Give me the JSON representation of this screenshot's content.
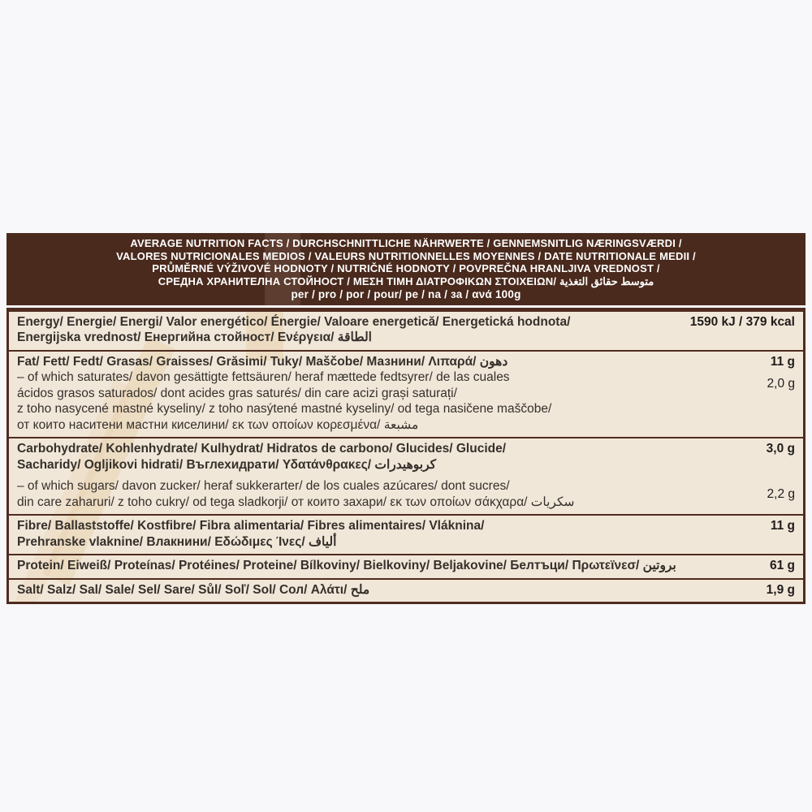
{
  "colors": {
    "page-bg": "#f8f8fa",
    "header-bg": "#4a2a1d",
    "header-text": "#ffffff",
    "row-bg": "#f1e7d9",
    "border": "#4f2c1f",
    "text": "#35302b",
    "value": "#1f1c1a",
    "stripe": "#e8d1ab"
  },
  "header": {
    "lines": [
      "AVERAGE NUTRITION FACTS / DURCHSCHNITTLICHE  NÄHRWERTE / GENNEMSNITLIG NÆRINGSVÆRDI /",
      "VALORES NUTRICIONALES MEDIOS / VALEURS NUTRITIONNELLES MOYENNES / DATE NUTRITIONALE MEDII /",
      "PRŮMĚRNÉ VÝŽIVOVÉ HODNOTY / NUTRIČNÉ HODNOTY / POVPREČNA HRANLJIVA VREDNOST /",
      "СРЕДНА ХРАНИТЕЛНА СТОЙНОСТ / ΜΕΣΗ ΤΙΜΗ ΔΙΑΤΡΟΦΙΚΩΝ ΣΤΟΙΧΕΙΩΝ/ متوسط حقائق التغذية"
    ],
    "per_line": "per / pro / por / pour/ pe / na / за / ανά 100g"
  },
  "rows": [
    {
      "name": "energy",
      "lines": [
        {
          "text": "Energy/ Energie/ Energi/ Valor energético/ Énergie/ Valoare energetică/ Energetická hodnota/"
        },
        {
          "text": "Energijska vrednost/ Енергийна стойност/ Ενέργεια/ الطاقة"
        }
      ],
      "values": [
        {
          "text": "1590 kJ / 379 kcal"
        }
      ]
    },
    {
      "name": "fat",
      "lines": [
        {
          "text": "Fat/ Fett/ Fedt/ Grasas/ Graisses/ Grăsimi/ Tuky/ Maščobe/ Мазнини/ Λιπαρά/ دهون"
        },
        {
          "text": "– of which saturates/ davon gesättigte fettsäuren/ heraf mættede fedtsyrer/ de las cuales"
        },
        {
          "text": "ácidos grasos saturados/ dont acides gras saturés/ din care acizi grași saturați/"
        },
        {
          "text": "z toho nasycené mastné kyseliny/ z toho nasýtené mastné kyseliny/ od tega nasičene maščobe/"
        },
        {
          "text": "от които наситени мастни киселини/ εκ των οποίων κορεσμένα/ مشبعة"
        }
      ],
      "values": [
        {
          "text": "11 g"
        },
        {
          "text": "2,0 g"
        }
      ]
    },
    {
      "name": "carbohydrate",
      "lines": [
        {
          "text": "Carbohydrate/ Kohlenhydrate/ Kulhydrat/ Hidratos de carbono/ Glucides/ Glucide/"
        },
        {
          "text": "Sacharidy/ Ogljikovi hidrati/ Въглехидрати/ Υδατάνθρακες/ كربوهيدرات"
        },
        {
          "text": "– of which sugars/ davon zucker/ heraf sukkerarter/ de los cuales azúcares/ dont sucres/"
        },
        {
          "text": "din care zaharuri/ z toho cukry/ od tega sladkorji/ от които захари/ εκ των οποίων σάκχαρα/ سكريات"
        }
      ],
      "values": [
        {
          "text": "3,0 g"
        },
        {
          "text": "2,2 g"
        }
      ]
    },
    {
      "name": "fibre",
      "lines": [
        {
          "text": "Fibre/ Ballaststoffe/ Kostfibre/ Fibra alimentaria/ Fibres alimentaires/ Vláknina/"
        },
        {
          "text": "Prehranske vlaknine/ Влакнини/ Εδώδιμες Ίνες/ ألياف"
        }
      ],
      "values": [
        {
          "text": "11 g"
        }
      ]
    },
    {
      "name": "protein",
      "lines": [
        {
          "text": "Protein/ Eiweiß/ Proteínas/ Protéines/ Proteine/ Bílkoviny/ Bielkoviny/ Beljakovine/ Белтъци/ Πρωτεϊνεσ/ بروتين"
        }
      ],
      "values": [
        {
          "text": "61 g"
        }
      ]
    },
    {
      "name": "salt",
      "lines": [
        {
          "text": "Salt/ Salz/ Sal/ Sale/ Sel/ Sare/ Sůl/ Soľ/ Sol/ Сол/ Αλάτι/ ملح"
        }
      ],
      "values": [
        {
          "text": "1,9 g"
        }
      ]
    }
  ]
}
